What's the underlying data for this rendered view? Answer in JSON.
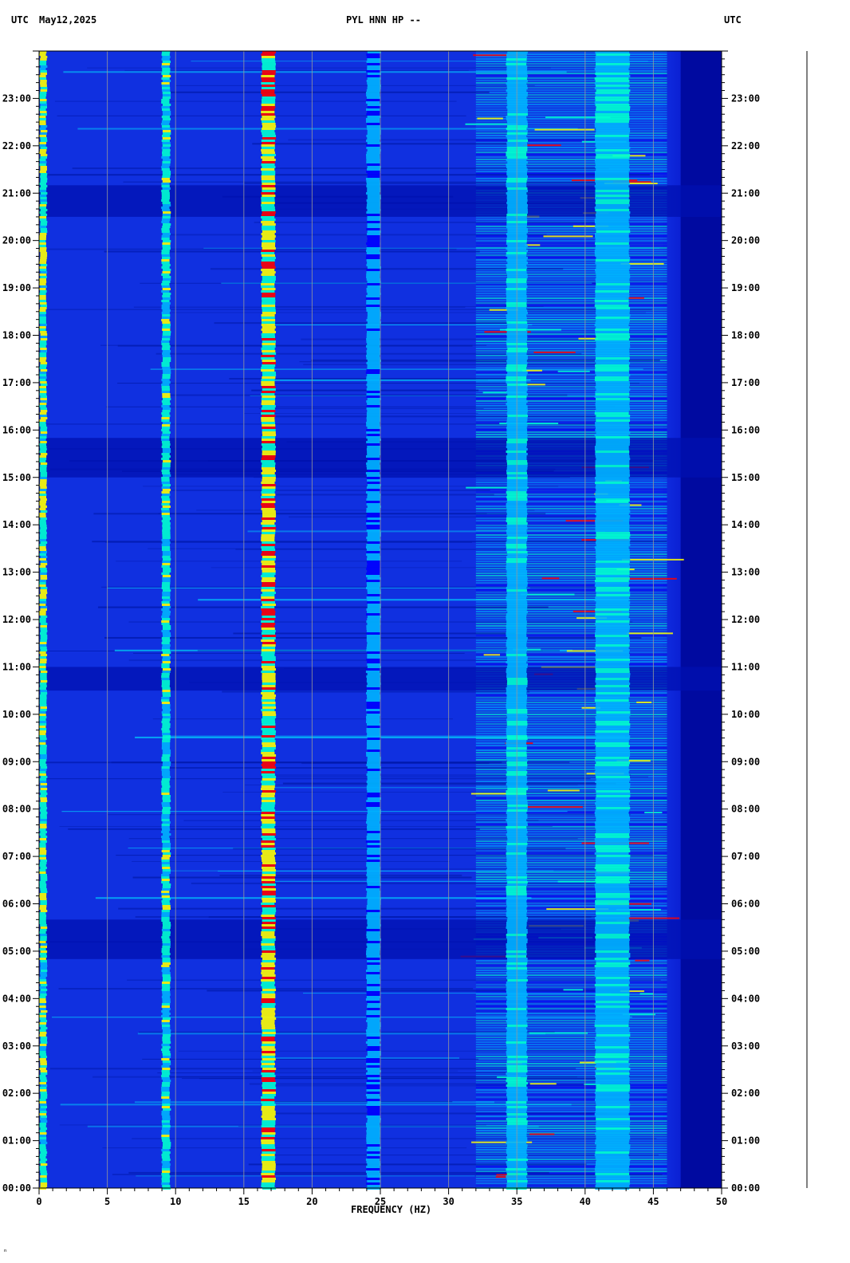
{
  "header": {
    "left_utc": "UTC",
    "date": "May12,2025",
    "station": "PYL HNN HP --",
    "right_utc": "UTC"
  },
  "footnote": "ⁿ",
  "chart_data": {
    "type": "heatmap",
    "title": "PYL HNN HP --",
    "xlabel": "FREQUENCY (HZ)",
    "ylabel": "",
    "xlim": [
      0,
      50
    ],
    "ylim": [
      "00:00",
      "24:00"
    ],
    "x_ticks": [
      "0",
      "5",
      "10",
      "15",
      "20",
      "25",
      "30",
      "35",
      "40",
      "45",
      "50"
    ],
    "y_ticks": [
      "00:00",
      "01:00",
      "02:00",
      "03:00",
      "04:00",
      "05:00",
      "06:00",
      "07:00",
      "08:00",
      "09:00",
      "10:00",
      "11:00",
      "12:00",
      "13:00",
      "14:00",
      "15:00",
      "16:00",
      "17:00",
      "18:00",
      "19:00",
      "20:00",
      "21:00",
      "22:00",
      "23:00"
    ],
    "grid": true,
    "colormap": [
      "#00008b",
      "#0000ff",
      "#00b4ff",
      "#00ffd0",
      "#ffff00",
      "#ff0000"
    ],
    "spectral_lines_hz": [
      {
        "freq": 0.3,
        "intensity": 0.8,
        "width": 0.5
      },
      {
        "freq": 9.3,
        "intensity": 0.7,
        "width": 0.6
      },
      {
        "freq": 16.8,
        "intensity": 0.95,
        "width": 1.0
      },
      {
        "freq": 24.5,
        "intensity": 0.45,
        "width": 1.0
      },
      {
        "freq": 35.0,
        "intensity": 0.55,
        "width": 1.5
      },
      {
        "freq": 42.0,
        "intensity": 0.55,
        "width": 2.5
      }
    ],
    "broadband_band_hz": [
      32,
      46
    ],
    "quiet_periods_utc": [
      [
        "04:50",
        "05:40"
      ],
      [
        "10:30",
        "11:00"
      ],
      [
        "15:00",
        "15:50"
      ],
      [
        "20:30",
        "21:10"
      ]
    ]
  }
}
